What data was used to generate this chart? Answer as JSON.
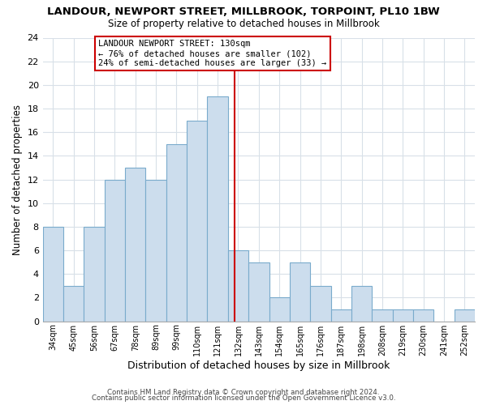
{
  "title": "LANDOUR, NEWPORT STREET, MILLBROOK, TORPOINT, PL10 1BW",
  "subtitle": "Size of property relative to detached houses in Millbrook",
  "xlabel": "Distribution of detached houses by size in Millbrook",
  "ylabel": "Number of detached properties",
  "bin_labels": [
    "34sqm",
    "45sqm",
    "56sqm",
    "67sqm",
    "78sqm",
    "89sqm",
    "99sqm",
    "110sqm",
    "121sqm",
    "132sqm",
    "143sqm",
    "154sqm",
    "165sqm",
    "176sqm",
    "187sqm",
    "198sqm",
    "208sqm",
    "219sqm",
    "230sqm",
    "241sqm",
    "252sqm"
  ],
  "counts": [
    8,
    3,
    8,
    12,
    13,
    12,
    15,
    17,
    19,
    6,
    5,
    2,
    5,
    3,
    1,
    3,
    1,
    1,
    1,
    0,
    1
  ],
  "bar_color": "#ccdded",
  "bar_edge_color": "#7aabcc",
  "marker_bin": 8.82,
  "marker_color": "#cc0000",
  "annotation_title": "LANDOUR NEWPORT STREET: 130sqm",
  "annotation_line1": "← 76% of detached houses are smaller (102)",
  "annotation_line2": "24% of semi-detached houses are larger (33) →",
  "annotation_box_edge": "#cc0000",
  "ylim": [
    0,
    24
  ],
  "yticks": [
    0,
    2,
    4,
    6,
    8,
    10,
    12,
    14,
    16,
    18,
    20,
    22,
    24
  ],
  "footer1": "Contains HM Land Registry data © Crown copyright and database right 2024.",
  "footer2": "Contains public sector information licensed under the Open Government Licence v3.0.",
  "background_color": "#ffffff",
  "grid_color": "#d8e0e8"
}
